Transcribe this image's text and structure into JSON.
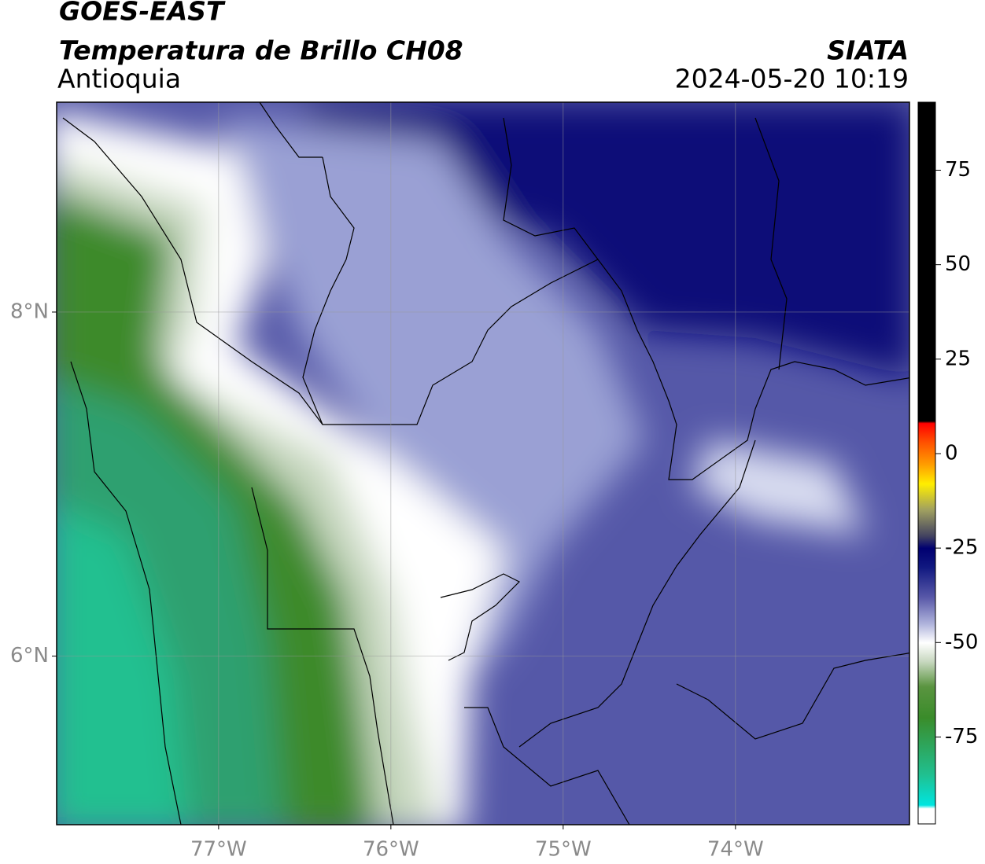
{
  "header": {
    "title": "GOES-EAST",
    "subtitle": "Temperatura de Brillo CH08",
    "region": "Antioquia",
    "source": "SIATA",
    "datetime": "2024-05-20 10:19"
  },
  "map": {
    "xlim": [
      -77.94,
      -72.99
    ],
    "ylim": [
      5.02,
      9.22
    ],
    "xticks": [
      {
        "value": -77,
        "label": "77°W"
      },
      {
        "value": -76,
        "label": "76°W"
      },
      {
        "value": -75,
        "label": "75°W"
      },
      {
        "value": -74,
        "label": "74°W"
      }
    ],
    "yticks": [
      {
        "value": 6,
        "label": "6°N"
      },
      {
        "value": 8,
        "label": "8°N"
      }
    ],
    "grid": true
  },
  "colorbar": {
    "clim": [
      -98,
      93
    ],
    "ticks": [
      75,
      50,
      25,
      0,
      -25,
      -50,
      -75
    ]
  }
}
